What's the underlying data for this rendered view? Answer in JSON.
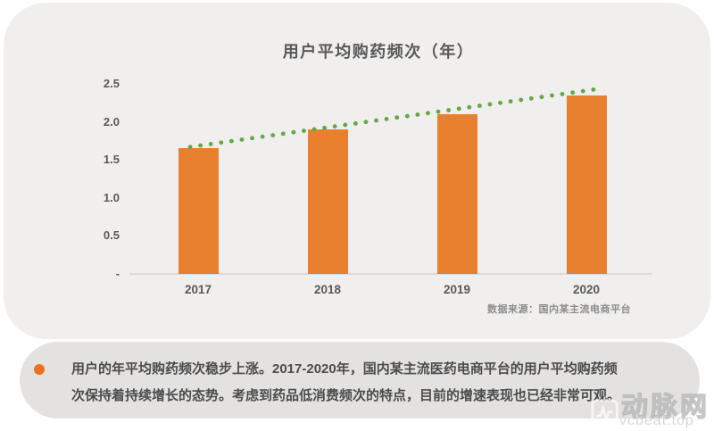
{
  "chart_data": {
    "type": "bar",
    "title": "用户平均购药频次（年）",
    "categories": [
      "2017",
      "2018",
      "2019",
      "2020"
    ],
    "values": [
      1.65,
      1.9,
      2.1,
      2.35
    ],
    "xlabel": "",
    "ylabel": "",
    "ylim": [
      0,
      2.5
    ],
    "grid": false,
    "legend": "none",
    "y_ticks": [
      {
        "label": "2.5",
        "value": 2.5
      },
      {
        "label": "2.0",
        "value": 2.0
      },
      {
        "label": "1.5",
        "value": 1.5
      },
      {
        "label": "1.0",
        "value": 1.0
      },
      {
        "label": "0.5",
        "value": 0.5
      },
      {
        "label": "-",
        "value": 0
      }
    ],
    "trendline": {
      "style": "dotted",
      "start_value": 1.67,
      "end_value": 2.44
    },
    "source_note": "数据来源：国内某主流电商平台"
  },
  "note": {
    "line1": "用户的年平均购药频次稳步上涨。2017-2020年，国内某主流医药电商平台的用户平均购药频",
    "line2": "次保持着持续增长的态势。考虑到药品低消费频次的特点，目前的增速表现也已经非常可观。"
  },
  "watermark": {
    "brand": "动脉网",
    "site": "vcbeat.top"
  },
  "colors": {
    "bar": "#e8802f",
    "trend": "#63a845",
    "bullet": "#ee7023",
    "card_bg": "#f0efee",
    "note_bg": "#e3e2e1",
    "title_text": "#595959",
    "tick_text": "#595959",
    "source_text": "#8c8c8c",
    "note_text": "#4c4c4c",
    "axis_line": "#dcdbda"
  }
}
